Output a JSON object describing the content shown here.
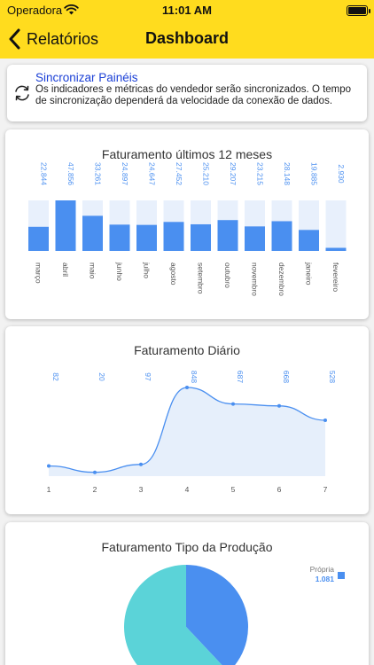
{
  "status_bar": {
    "carrier": "Operadora",
    "time": "11:01 AM"
  },
  "nav": {
    "back_label": "Relatórios",
    "title": "Dashboard"
  },
  "sync": {
    "title": "Sincronizar Painéis",
    "description": "Os indicadores e métricas do vendedor serão sincronizados. O tempo de sincronização dependerá da velocidade da conexão de dados."
  },
  "colors": {
    "accent": "#ffdc1e",
    "bar": "#4a8ff0",
    "bar_track": "#e8f0fc",
    "line": "#4a8ff0",
    "area": "#e6effb",
    "pie_blue": "#4a8ff0",
    "pie_cyan": "#5bd3d8"
  },
  "chart_data": [
    {
      "type": "bar",
      "title": "Faturamento últimos 12 meses",
      "categories": [
        "março",
        "abril",
        "maio",
        "junho",
        "julho",
        "agosto",
        "setembro",
        "outubro",
        "novembro",
        "dezembro",
        "janeiro",
        "fevereiro"
      ],
      "values": [
        22844,
        47856,
        33261,
        24897,
        24647,
        27452,
        25210,
        29207,
        23215,
        28148,
        19885,
        2930
      ],
      "value_labels": [
        "22.844",
        "47.856",
        "33.261",
        "24.897",
        "24.647",
        "27.452",
        "25.210",
        "29.207",
        "23.215",
        "28.148",
        "19.885",
        "2.930"
      ],
      "ylim": [
        0,
        47856
      ],
      "grid": false
    },
    {
      "type": "area",
      "title": "Faturamento Diário",
      "x": [
        "1",
        "2",
        "3",
        "4",
        "5",
        "6",
        "7"
      ],
      "values": [
        82,
        20,
        97,
        848,
        687,
        668,
        528
      ],
      "value_labels": [
        "82",
        "20",
        "97",
        "848",
        "687",
        "668",
        "528"
      ],
      "ylim": [
        0,
        848
      ],
      "grid": false
    },
    {
      "type": "pie",
      "title": "Faturamento Tipo da Produção",
      "legend": [
        {
          "name": "Própria",
          "value_label": "1.081"
        }
      ],
      "legend_position": "top-right",
      "slices": [
        {
          "name": "Própria",
          "share": 0.38
        },
        {
          "name": "",
          "share": 0.62
        }
      ]
    }
  ]
}
